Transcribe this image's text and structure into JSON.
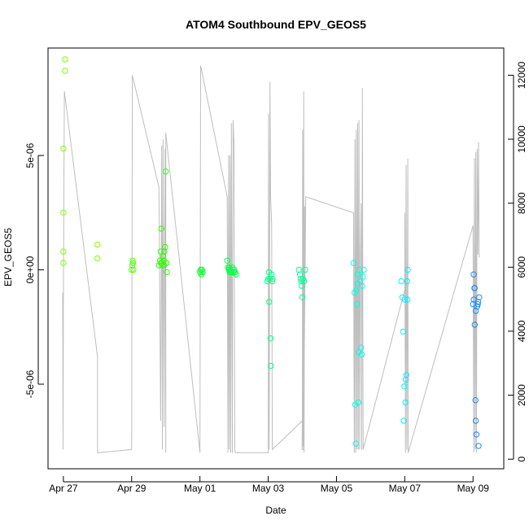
{
  "chart_data": {
    "type": "scatter",
    "title": "ATOM4 Southbound EPV_GEOS5",
    "xlabel": "Date",
    "ylabel": "EPV_GEOS5",
    "x_ticks": [
      "Apr 27",
      "Apr 29",
      "May 01",
      "May 03",
      "May 05",
      "May 07",
      "May 09"
    ],
    "y_ticks": [
      {
        "value": -5e-06,
        "label": "-5e-06"
      },
      {
        "value": 0,
        "label": "0e+00"
      },
      {
        "value": 5e-06,
        "label": "5e-06"
      }
    ],
    "y2_ticks": [
      0,
      2000,
      4000,
      6000,
      8000,
      10000,
      12000
    ],
    "xlim": [
      -0.45,
      12.9
    ],
    "ylim": [
      -8.7e-06,
      9.7e-06
    ],
    "y2lim": [
      -300,
      12850
    ],
    "series": [
      {
        "type": "points",
        "values": [
          [
            0.05,
            9.2e-06,
            "#80ff00"
          ],
          [
            0.05,
            8.7e-06,
            "#80ff00"
          ],
          [
            0.0,
            5.3e-06,
            "#80ff00"
          ],
          [
            0.0,
            2.5e-06,
            "#80ff00"
          ],
          [
            0.0,
            8e-07,
            "#80ff00"
          ],
          [
            0.0,
            3e-07,
            "#80ff00"
          ],
          [
            1.0,
            1.1e-06,
            "#80ff00"
          ],
          [
            1.0,
            5e-07,
            "#80ff00"
          ],
          [
            2.0,
            0.0,
            "#55ff00"
          ],
          [
            2.02,
            2e-07,
            "#55ff00"
          ],
          [
            2.03,
            4e-07,
            "#55ff00"
          ],
          [
            2.04,
            3e-07,
            "#55ff00"
          ],
          [
            2.05,
            0.0,
            "#55ff00"
          ],
          [
            2.8,
            2e-07,
            "#2bff00"
          ],
          [
            2.83,
            4e-07,
            "#2bff00"
          ],
          [
            2.85,
            8e-07,
            "#2bff00"
          ],
          [
            2.87,
            1.8e-06,
            "#2bff00"
          ],
          [
            2.88,
            3e-07,
            "#2bff00"
          ],
          [
            2.9,
            2e-07,
            "#2bff00"
          ],
          [
            2.92,
            6e-07,
            "#2bff00"
          ],
          [
            2.94,
            4e-07,
            "#2bff00"
          ],
          [
            2.95,
            2e-07,
            "#2bff00"
          ],
          [
            2.96,
            8e-07,
            "#2bff00"
          ],
          [
            2.98,
            1e-06,
            "#2bff00"
          ],
          [
            3.0,
            4.3e-06,
            "#2bff00"
          ],
          [
            3.02,
            3e-07,
            "#2bff00"
          ],
          [
            3.03,
            -1e-07,
            "#2bff00"
          ],
          [
            2.86,
            3e-07,
            "#2bff00"
          ],
          [
            4.0,
            -1e-07,
            "#00ff2b"
          ],
          [
            4.02,
            0.0,
            "#00ff2b"
          ],
          [
            4.04,
            -2e-07,
            "#00ff2b"
          ],
          [
            4.06,
            0.0,
            "#00ff2b"
          ],
          [
            4.08,
            -1e-07,
            "#00ff2b"
          ],
          [
            4.8,
            4e-07,
            "#00ff40"
          ],
          [
            4.82,
            1e-07,
            "#00ff40"
          ],
          [
            4.85,
            0.0,
            "#00ff40"
          ],
          [
            4.88,
            -1e-07,
            "#00ff40"
          ],
          [
            4.9,
            0.0,
            "#00ff40"
          ],
          [
            4.92,
            -1e-07,
            "#00ff40"
          ],
          [
            4.95,
            1e-07,
            "#00ff40"
          ],
          [
            4.98,
            -1e-07,
            "#00ff40"
          ],
          [
            5.0,
            0.0,
            "#00ff40"
          ],
          [
            5.03,
            -1e-07,
            "#00ff40"
          ],
          [
            5.06,
            -2e-07,
            "#00ff40"
          ],
          [
            4.86,
            1e-07,
            "#00ff40"
          ],
          [
            6.0,
            -4e-07,
            "#00ff80"
          ],
          [
            6.02,
            -1e-07,
            "#00ff80"
          ],
          [
            6.03,
            -1.4e-06,
            "#00ff80"
          ],
          [
            6.05,
            -4e-07,
            "#00ff80"
          ],
          [
            6.07,
            -3e-06,
            "#00ff80"
          ],
          [
            6.08,
            -4.2e-06,
            "#00ff80"
          ],
          [
            6.1,
            -2e-07,
            "#00ff80"
          ],
          [
            6.12,
            -5e-07,
            "#00ff80"
          ],
          [
            6.13,
            -4e-07,
            "#00ff80"
          ],
          [
            5.98,
            -5e-07,
            "#00ff80"
          ],
          [
            6.9,
            0.0,
            "#00ff95"
          ],
          [
            6.93,
            -2e-07,
            "#00ff95"
          ],
          [
            6.95,
            -4e-07,
            "#00ff95"
          ],
          [
            6.97,
            -5e-07,
            "#00ff95"
          ],
          [
            6.98,
            -7e-07,
            "#00ff95"
          ],
          [
            7.0,
            -1.2e-06,
            "#00ff95"
          ],
          [
            7.02,
            -4e-07,
            "#00ff95"
          ],
          [
            7.05,
            -5e-07,
            "#00ff95"
          ],
          [
            7.08,
            0.0,
            "#00ff95"
          ],
          [
            8.5,
            3e-07,
            "#00ffea"
          ],
          [
            8.53,
            -1e-06,
            "#00ffea"
          ],
          [
            8.55,
            -5.9e-06,
            "#00ffea"
          ],
          [
            8.57,
            -7.6e-06,
            "#00ffea"
          ],
          [
            8.6,
            -1.5e-06,
            "#00ffea"
          ],
          [
            8.62,
            -2e-07,
            "#00ffea"
          ],
          [
            8.64,
            -5.8e-06,
            "#00ffea"
          ],
          [
            8.65,
            -3.6e-06,
            "#00ffea"
          ],
          [
            8.67,
            0.0,
            "#00ffea"
          ],
          [
            8.7,
            -5e-07,
            "#00ffea"
          ],
          [
            8.72,
            -3.4e-06,
            "#00ffea"
          ],
          [
            8.74,
            -3.7e-06,
            "#00ffea"
          ],
          [
            8.75,
            -7e-07,
            "#00ffea"
          ],
          [
            8.77,
            -3e-07,
            "#00ffea"
          ],
          [
            8.8,
            0.0,
            "#00ffea"
          ],
          [
            8.58,
            -9e-07,
            "#00ffea"
          ],
          [
            8.62,
            -6e-07,
            "#00ffea"
          ],
          [
            9.9,
            -5e-07,
            "#00f0ff"
          ],
          [
            9.93,
            -1.2e-06,
            "#00f0ff"
          ],
          [
            9.95,
            -2.7e-06,
            "#00f0ff"
          ],
          [
            9.97,
            -6.6e-06,
            "#00f0ff"
          ],
          [
            9.99,
            -5.1e-06,
            "#00f0ff"
          ],
          [
            10.0,
            -1.3e-06,
            "#00f0ff"
          ],
          [
            10.02,
            -5.8e-06,
            "#00f0ff"
          ],
          [
            10.03,
            -4.8e-06,
            "#00f0ff"
          ],
          [
            10.05,
            -4.6e-06,
            "#00f0ff"
          ],
          [
            10.07,
            -5e-07,
            "#00f0ff"
          ],
          [
            10.08,
            -1.3e-06,
            "#00f0ff"
          ],
          [
            10.09,
            0.0,
            "#00f0ff"
          ],
          [
            12.0,
            -1.5e-06,
            "#1a8cff"
          ],
          [
            12.02,
            -1.3e-06,
            "#1a8cff"
          ],
          [
            12.04,
            -8e-07,
            "#1a8cff"
          ],
          [
            12.05,
            -2.4e-06,
            "#1a8cff"
          ],
          [
            12.07,
            -5.7e-06,
            "#1a8cff"
          ],
          [
            12.08,
            -6.6e-06,
            "#1a8cff"
          ],
          [
            12.1,
            -7.2e-06,
            "#1a8cff"
          ],
          [
            12.12,
            -1.6e-06,
            "#1a8cff"
          ],
          [
            12.14,
            -1.5e-06,
            "#1a8cff"
          ],
          [
            12.16,
            -7.7e-06,
            "#1a8cff"
          ],
          [
            12.18,
            -1.2e-06,
            "#1a8cff"
          ],
          [
            12.02,
            -2e-07,
            "#1a8cff"
          ],
          [
            12.05,
            -8e-07,
            "#1a8cff"
          ],
          [
            12.15,
            -1.4e-06,
            "#1a8cff"
          ],
          [
            12.08,
            -1.8e-06,
            "#1a8cff"
          ]
        ]
      },
      {
        "type": "altitude-line",
        "color": "#bebebe",
        "axis": "right",
        "values": [
          [
            -0.02,
            5200
          ],
          [
            -0.01,
            300
          ],
          [
            0.0,
            5100
          ],
          [
            0.03,
            11500
          ],
          [
            1.0,
            3200
          ],
          [
            1.0,
            200
          ],
          [
            2.0,
            300
          ],
          [
            2.02,
            12000
          ],
          [
            2.8,
            8500
          ],
          [
            2.85,
            1200
          ],
          [
            2.88,
            9800
          ],
          [
            2.9,
            300
          ],
          [
            2.92,
            10000
          ],
          [
            2.95,
            1000
          ],
          [
            2.98,
            9700
          ],
          [
            3.0,
            200
          ],
          [
            3.0,
            10200
          ],
          [
            4.0,
            200
          ],
          [
            4.02,
            12300
          ],
          [
            4.8,
            8200
          ],
          [
            4.82,
            200
          ],
          [
            4.84,
            9500
          ],
          [
            4.86,
            300
          ],
          [
            4.88,
            9500
          ],
          [
            4.9,
            200
          ],
          [
            4.92,
            10500
          ],
          [
            4.95,
            200
          ],
          [
            4.97,
            10600
          ],
          [
            5.0,
            9800
          ],
          [
            5.02,
            300
          ],
          [
            5.04,
            200
          ],
          [
            6.0,
            200
          ],
          [
            6.01,
            10800
          ],
          [
            6.03,
            300
          ],
          [
            6.05,
            11800
          ],
          [
            6.07,
            8200
          ],
          [
            6.1,
            7300
          ],
          [
            6.12,
            300
          ],
          [
            7.0,
            1200
          ],
          [
            7.01,
            10300
          ],
          [
            7.02,
            400
          ],
          [
            7.04,
            11500
          ],
          [
            7.05,
            200
          ],
          [
            7.07,
            7900
          ],
          [
            6.99,
            300
          ],
          [
            7.03,
            300
          ],
          [
            7.1,
            8200
          ],
          [
            8.5,
            7700
          ],
          [
            8.52,
            200
          ],
          [
            8.54,
            10000
          ],
          [
            8.56,
            200
          ],
          [
            8.58,
            10300
          ],
          [
            8.6,
            300
          ],
          [
            8.62,
            10500
          ],
          [
            8.64,
            300
          ],
          [
            8.66,
            10600
          ],
          [
            8.68,
            300
          ],
          [
            8.7,
            6200
          ],
          [
            8.72,
            8000
          ],
          [
            8.74,
            300
          ],
          [
            8.76,
            11600
          ],
          [
            8.78,
            300
          ],
          [
            10.0,
            5300
          ],
          [
            10.0,
            7700
          ],
          [
            10.02,
            200
          ],
          [
            10.04,
            9200
          ],
          [
            10.06,
            300
          ],
          [
            10.09,
            9400
          ],
          [
            10.1,
            200
          ],
          [
            12.0,
            7300
          ],
          [
            12.02,
            200
          ],
          [
            12.04,
            9400
          ],
          [
            12.06,
            300
          ],
          [
            12.08,
            9600
          ],
          [
            12.1,
            200
          ],
          [
            12.12,
            9700
          ],
          [
            12.14,
            6400
          ],
          [
            12.16,
            9900
          ],
          [
            12.18,
            6300
          ]
        ]
      }
    ],
    "grid": false,
    "legend": "none"
  }
}
